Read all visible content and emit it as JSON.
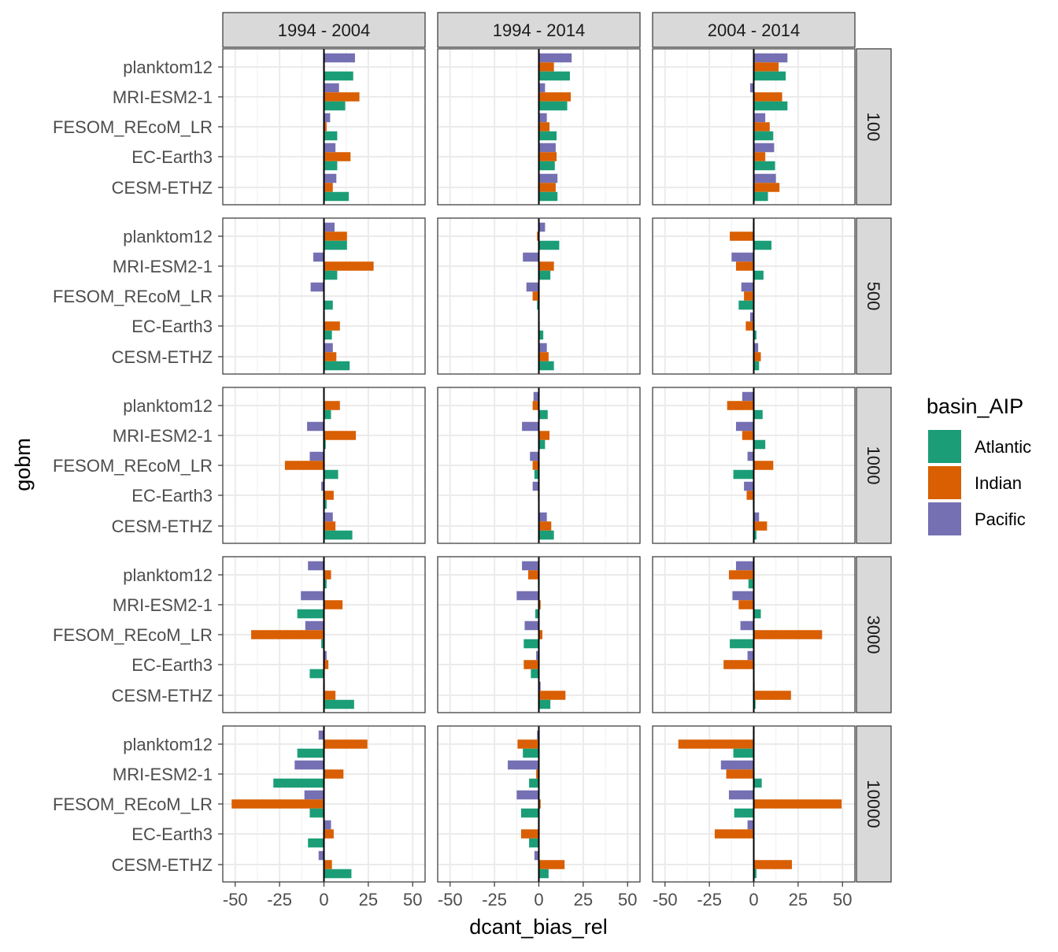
{
  "chart_data": {
    "type": "bar",
    "orientation": "horizontal",
    "facets": {
      "columns": [
        "1994 - 2004",
        "1994 - 2014",
        "2004 - 2014"
      ],
      "rows": [
        "100",
        "500",
        "1000",
        "3000",
        "10000"
      ]
    },
    "categories": [
      "planktom12",
      "MRI-ESM2-1",
      "FESOM_REcoM_LR",
      "EC-Earth3",
      "CESM-ETHZ"
    ],
    "xlabel": "dcant_bias_rel",
    "ylabel": "gobm",
    "xlim": [
      -57,
      57
    ],
    "xticks": [
      -50,
      -25,
      0,
      25,
      50
    ],
    "xtick_labels": [
      "-50",
      "-25",
      "0",
      "25",
      "50"
    ],
    "grid": true,
    "legend": {
      "title": "basin_AIP",
      "position": "right",
      "entries": [
        {
          "label": "Atlantic",
          "color": "#1B9E77"
        },
        {
          "label": "Indian",
          "color": "#D95F02"
        },
        {
          "label": "Pacific",
          "color": "#7570B3"
        }
      ]
    },
    "series_order": [
      "Pacific",
      "Indian",
      "Atlantic"
    ],
    "panels": [
      [
        {
          "planktom12": {
            "Atlantic": 16.5,
            "Indian": 0.5,
            "Pacific": 17.5
          },
          "MRI-ESM2-1": {
            "Atlantic": 12,
            "Indian": 20,
            "Pacific": 8.5
          },
          "FESOM_REcoM_LR": {
            "Atlantic": 7.5,
            "Indian": 1.5,
            "Pacific": 3.5
          },
          "EC-Earth3": {
            "Atlantic": 7.5,
            "Indian": 15,
            "Pacific": 6.5
          },
          "CESM-ETHZ": {
            "Atlantic": 14,
            "Indian": 5,
            "Pacific": 7
          }
        },
        {
          "planktom12": {
            "Atlantic": 17.5,
            "Indian": 8.5,
            "Pacific": 18.5
          },
          "MRI-ESM2-1": {
            "Atlantic": 16,
            "Indian": 18,
            "Pacific": 3.5
          },
          "FESOM_REcoM_LR": {
            "Atlantic": 10,
            "Indian": 6,
            "Pacific": 4.5
          },
          "EC-Earth3": {
            "Atlantic": 9,
            "Indian": 10,
            "Pacific": 9.5
          },
          "CESM-ETHZ": {
            "Atlantic": 10.5,
            "Indian": 9.5,
            "Pacific": 10.5
          }
        },
        {
          "planktom12": {
            "Atlantic": 18,
            "Indian": 14,
            "Pacific": 19
          },
          "MRI-ESM2-1": {
            "Atlantic": 19,
            "Indian": 16,
            "Pacific": -2
          },
          "FESOM_REcoM_LR": {
            "Atlantic": 11,
            "Indian": 9,
            "Pacific": 6.5
          },
          "EC-Earth3": {
            "Atlantic": 12,
            "Indian": 6.5,
            "Pacific": 11.5
          },
          "CESM-ETHZ": {
            "Atlantic": 8,
            "Indian": 14.5,
            "Pacific": 12.5
          }
        }
      ],
      [
        {
          "planktom12": {
            "Atlantic": 13,
            "Indian": 13,
            "Pacific": 6
          },
          "MRI-ESM2-1": {
            "Atlantic": 7.5,
            "Indian": 28,
            "Pacific": -6
          },
          "FESOM_REcoM_LR": {
            "Atlantic": 5,
            "Indian": 0.3,
            "Pacific": -7.5
          },
          "EC-Earth3": {
            "Atlantic": 4.5,
            "Indian": 9,
            "Pacific": 0.5
          },
          "CESM-ETHZ": {
            "Atlantic": 14.5,
            "Indian": 7,
            "Pacific": 5
          }
        },
        {
          "planktom12": {
            "Atlantic": 11.5,
            "Indian": -1,
            "Pacific": 3.5
          },
          "MRI-ESM2-1": {
            "Atlantic": 6.5,
            "Indian": 8.5,
            "Pacific": -9
          },
          "FESOM_REcoM_LR": {
            "Atlantic": -1,
            "Indian": -3.5,
            "Pacific": -7
          },
          "EC-Earth3": {
            "Atlantic": 2.5,
            "Indian": 0.5,
            "Pacific": -0.3
          },
          "CESM-ETHZ": {
            "Atlantic": 8.5,
            "Indian": 5.5,
            "Pacific": 4.5
          }
        },
        {
          "planktom12": {
            "Atlantic": 10,
            "Indian": -13.5,
            "Pacific": -0.5
          },
          "MRI-ESM2-1": {
            "Atlantic": 5.5,
            "Indian": -10,
            "Pacific": -12.5
          },
          "FESOM_REcoM_LR": {
            "Atlantic": -8.5,
            "Indian": -5.5,
            "Pacific": -7
          },
          "EC-Earth3": {
            "Atlantic": 1.5,
            "Indian": -4.5,
            "Pacific": -2
          },
          "CESM-ETHZ": {
            "Atlantic": 3,
            "Indian": 4,
            "Pacific": 2.5
          }
        }
      ],
      [
        {
          "planktom12": {
            "Atlantic": 4,
            "Indian": 9,
            "Pacific": 0.3
          },
          "MRI-ESM2-1": {
            "Atlantic": 1,
            "Indian": 18,
            "Pacific": -9.5
          },
          "FESOM_REcoM_LR": {
            "Atlantic": 8,
            "Indian": -22,
            "Pacific": -8
          },
          "EC-Earth3": {
            "Atlantic": 1.5,
            "Indian": 5.5,
            "Pacific": -1.5
          },
          "CESM-ETHZ": {
            "Atlantic": 16,
            "Indian": 6.5,
            "Pacific": 5
          }
        },
        {
          "planktom12": {
            "Atlantic": 5,
            "Indian": -3.5,
            "Pacific": -3
          },
          "MRI-ESM2-1": {
            "Atlantic": 3.5,
            "Indian": 6,
            "Pacific": -9.5
          },
          "FESOM_REcoM_LR": {
            "Atlantic": -2.5,
            "Indian": -3.5,
            "Pacific": -5
          },
          "EC-Earth3": {
            "Atlantic": 0.3,
            "Indian": -0.5,
            "Pacific": -3.5
          },
          "CESM-ETHZ": {
            "Atlantic": 8.5,
            "Indian": 7,
            "Pacific": 4.5
          }
        },
        {
          "planktom12": {
            "Atlantic": 5,
            "Indian": -15,
            "Pacific": -6.5
          },
          "MRI-ESM2-1": {
            "Atlantic": 6.5,
            "Indian": -6.5,
            "Pacific": -10
          },
          "FESOM_REcoM_LR": {
            "Atlantic": -11.5,
            "Indian": 11,
            "Pacific": -3.5
          },
          "EC-Earth3": {
            "Atlantic": -0.5,
            "Indian": -4,
            "Pacific": -5.5
          },
          "CESM-ETHZ": {
            "Atlantic": 1.5,
            "Indian": 7.5,
            "Pacific": 3
          }
        }
      ],
      [
        {
          "planktom12": {
            "Atlantic": 1.5,
            "Indian": 4,
            "Pacific": -9
          },
          "MRI-ESM2-1": {
            "Atlantic": -15,
            "Indian": 10.5,
            "Pacific": -13
          },
          "FESOM_REcoM_LR": {
            "Atlantic": -1.5,
            "Indian": -41,
            "Pacific": -10.5
          },
          "EC-Earth3": {
            "Atlantic": -8,
            "Indian": 2.5,
            "Pacific": 1.5
          },
          "CESM-ETHZ": {
            "Atlantic": 17,
            "Indian": 6.5,
            "Pacific": 0.5
          }
        },
        {
          "planktom12": {
            "Atlantic": -0.5,
            "Indian": -6,
            "Pacific": -9.5
          },
          "MRI-ESM2-1": {
            "Atlantic": -2,
            "Indian": 1,
            "Pacific": -12.5
          },
          "FESOM_REcoM_LR": {
            "Atlantic": -8.5,
            "Indian": 2,
            "Pacific": -8
          },
          "EC-Earth3": {
            "Atlantic": -4.5,
            "Indian": -8.5,
            "Pacific": -1.5
          },
          "CESM-ETHZ": {
            "Atlantic": 6.5,
            "Indian": 15,
            "Pacific": 1
          }
        },
        {
          "planktom12": {
            "Atlantic": -3,
            "Indian": -14,
            "Pacific": -10
          },
          "MRI-ESM2-1": {
            "Atlantic": 4,
            "Indian": -8.5,
            "Pacific": -12
          },
          "FESOM_REcoM_LR": {
            "Atlantic": -13.5,
            "Indian": 38.5,
            "Pacific": -7.5
          },
          "EC-Earth3": {
            "Atlantic": -0.3,
            "Indian": -17,
            "Pacific": -3.5
          },
          "CESM-ETHZ": {
            "Atlantic": 1,
            "Indian": 21,
            "Pacific": 0.5
          }
        }
      ],
      [
        {
          "planktom12": {
            "Atlantic": -15,
            "Indian": 24.5,
            "Pacific": -3
          },
          "MRI-ESM2-1": {
            "Atlantic": -28.5,
            "Indian": 11,
            "Pacific": -16.5
          },
          "FESOM_REcoM_LR": {
            "Atlantic": -8,
            "Indian": -52,
            "Pacific": -11
          },
          "EC-Earth3": {
            "Atlantic": -9,
            "Indian": 5.5,
            "Pacific": 4
          },
          "CESM-ETHZ": {
            "Atlantic": 15.5,
            "Indian": 4.5,
            "Pacific": -3
          }
        },
        {
          "planktom12": {
            "Atlantic": -9,
            "Indian": -12,
            "Pacific": -1
          },
          "MRI-ESM2-1": {
            "Atlantic": -5.5,
            "Indian": -1.5,
            "Pacific": -17.5
          },
          "FESOM_REcoM_LR": {
            "Atlantic": -10,
            "Indian": 1,
            "Pacific": -12.5
          },
          "EC-Earth3": {
            "Atlantic": -5.5,
            "Indian": -10,
            "Pacific": -0.5
          },
          "CESM-ETHZ": {
            "Atlantic": 5.5,
            "Indian": 14.5,
            "Pacific": -2.5
          }
        },
        {
          "planktom12": {
            "Atlantic": -11.5,
            "Indian": -42.5,
            "Pacific": -0.5
          },
          "MRI-ESM2-1": {
            "Atlantic": 4.5,
            "Indian": -15.5,
            "Pacific": -18.5
          },
          "FESOM_REcoM_LR": {
            "Atlantic": -11,
            "Indian": 49.5,
            "Pacific": -14
          },
          "EC-Earth3": {
            "Atlantic": 0.3,
            "Indian": -22,
            "Pacific": -3.5
          },
          "CESM-ETHZ": {
            "Atlantic": 1.5,
            "Indian": 21.5,
            "Pacific": 0.3
          }
        }
      ]
    ]
  }
}
